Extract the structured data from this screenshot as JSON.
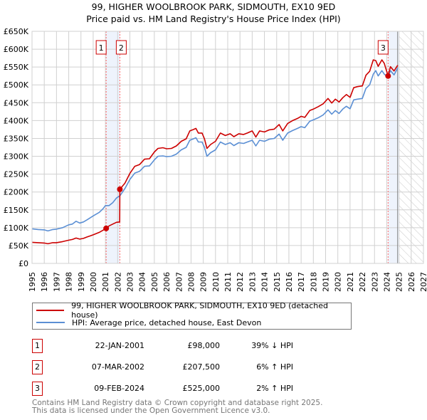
{
  "chart_data": {
    "type": "line",
    "title": "99, HIGHER WOOLBROOK PARK, SIDMOUTH, EX10 9ED",
    "subtitle": "Price paid vs. HM Land Registry's House Price Index (HPI)",
    "xlim": [
      1995,
      2027
    ],
    "ylim": [
      0,
      650000
    ],
    "x_ticks": [
      "1995",
      "1996",
      "1997",
      "1998",
      "1999",
      "2000",
      "2001",
      "2002",
      "2003",
      "2004",
      "2005",
      "2006",
      "2007",
      "2008",
      "2009",
      "2010",
      "2011",
      "2012",
      "2013",
      "2014",
      "2015",
      "2016",
      "2017",
      "2018",
      "2019",
      "2020",
      "2021",
      "2022",
      "2023",
      "2024",
      "2025",
      "2026",
      "2027"
    ],
    "y_ticks": [
      {
        "v": 0,
        "label": "£0"
      },
      {
        "v": 50000,
        "label": "£50K"
      },
      {
        "v": 100000,
        "label": "£100K"
      },
      {
        "v": 150000,
        "label": "£150K"
      },
      {
        "v": 200000,
        "label": "£200K"
      },
      {
        "v": 250000,
        "label": "£250K"
      },
      {
        "v": 300000,
        "label": "£300K"
      },
      {
        "v": 350000,
        "label": "£350K"
      },
      {
        "v": 400000,
        "label": "£400K"
      },
      {
        "v": 450000,
        "label": "£450K"
      },
      {
        "v": 500000,
        "label": "£500K"
      },
      {
        "v": 550000,
        "label": "£550K"
      },
      {
        "v": 600000,
        "label": "£600K"
      },
      {
        "v": 650000,
        "label": "£650K"
      }
    ],
    "grid": true,
    "forecast_hatch_from": 2025.0,
    "series": [
      {
        "name": "99, HIGHER WOOLBROOK PARK, SIDMOUTH, EX10 9ED (detached house)",
        "color": "#cc0000",
        "points": [
          [
            1995.0,
            59
          ],
          [
            1995.5,
            58
          ],
          [
            1996.0,
            57
          ],
          [
            1996.3,
            55
          ],
          [
            1996.7,
            58
          ],
          [
            1997.0,
            58
          ],
          [
            1997.5,
            61
          ],
          [
            1998.0,
            65
          ],
          [
            1998.3,
            67
          ],
          [
            1998.6,
            71
          ],
          [
            1998.9,
            68
          ],
          [
            1999.2,
            70
          ],
          [
            1999.5,
            74
          ],
          [
            2000.0,
            80
          ],
          [
            2000.5,
            87
          ],
          [
            2000.8,
            93
          ],
          [
            2001.06,
            98
          ],
          [
            2001.3,
            105
          ],
          [
            2001.6,
            110
          ],
          [
            2001.9,
            115
          ],
          [
            2002.17,
            116
          ],
          [
            2002.18,
            207.5
          ],
          [
            2002.6,
            225
          ],
          [
            2003.0,
            252
          ],
          [
            2003.4,
            272
          ],
          [
            2003.8,
            277
          ],
          [
            2004.2,
            292
          ],
          [
            2004.6,
            293
          ],
          [
            2005.0,
            312
          ],
          [
            2005.3,
            322
          ],
          [
            2005.7,
            324
          ],
          [
            2006.0,
            321
          ],
          [
            2006.4,
            322
          ],
          [
            2006.8,
            329
          ],
          [
            2007.2,
            342
          ],
          [
            2007.6,
            349
          ],
          [
            2007.9,
            371
          ],
          [
            2008.2,
            375
          ],
          [
            2008.4,
            378
          ],
          [
            2008.6,
            365
          ],
          [
            2008.9,
            365
          ],
          [
            2009.1,
            349
          ],
          [
            2009.3,
            322
          ],
          [
            2009.6,
            333
          ],
          [
            2010.0,
            342
          ],
          [
            2010.4,
            365
          ],
          [
            2010.8,
            358
          ],
          [
            2011.2,
            363
          ],
          [
            2011.5,
            355
          ],
          [
            2011.9,
            363
          ],
          [
            2012.3,
            361
          ],
          [
            2012.6,
            365
          ],
          [
            2013.0,
            371
          ],
          [
            2013.3,
            354
          ],
          [
            2013.6,
            371
          ],
          [
            2014.0,
            368
          ],
          [
            2014.4,
            374
          ],
          [
            2014.8,
            376
          ],
          [
            2015.2,
            389
          ],
          [
            2015.5,
            371
          ],
          [
            2015.9,
            392
          ],
          [
            2016.3,
            400
          ],
          [
            2016.7,
            406
          ],
          [
            2017.0,
            412
          ],
          [
            2017.3,
            409
          ],
          [
            2017.7,
            428
          ],
          [
            2018.0,
            432
          ],
          [
            2018.4,
            439
          ],
          [
            2018.8,
            447
          ],
          [
            2019.2,
            462
          ],
          [
            2019.5,
            449
          ],
          [
            2019.8,
            460
          ],
          [
            2020.1,
            452
          ],
          [
            2020.4,
            464
          ],
          [
            2020.7,
            473
          ],
          [
            2021.0,
            465
          ],
          [
            2021.3,
            492
          ],
          [
            2021.6,
            495
          ],
          [
            2022.0,
            497
          ],
          [
            2022.3,
            527
          ],
          [
            2022.6,
            538
          ],
          [
            2022.9,
            570
          ],
          [
            2023.1,
            568
          ],
          [
            2023.3,
            552
          ],
          [
            2023.6,
            570
          ],
          [
            2023.8,
            560
          ],
          [
            2024.11,
            525
          ],
          [
            2024.3,
            551
          ],
          [
            2024.6,
            539
          ],
          [
            2024.9,
            555
          ]
        ]
      },
      {
        "name": "HPI: Average price, detached house, East Devon",
        "color": "#5b8fd4",
        "points": [
          [
            1995.0,
            97
          ],
          [
            1995.5,
            95
          ],
          [
            1996.0,
            94
          ],
          [
            1996.3,
            91
          ],
          [
            1996.7,
            95
          ],
          [
            1997.0,
            96
          ],
          [
            1997.5,
            100
          ],
          [
            1998.0,
            108
          ],
          [
            1998.3,
            110
          ],
          [
            1998.6,
            118
          ],
          [
            1998.9,
            113
          ],
          [
            1999.2,
            116
          ],
          [
            1999.5,
            122
          ],
          [
            2000.0,
            133
          ],
          [
            2000.5,
            143
          ],
          [
            2000.8,
            153
          ],
          [
            2001.0,
            162
          ],
          [
            2001.3,
            162
          ],
          [
            2001.6,
            170
          ],
          [
            2001.9,
            183
          ],
          [
            2002.2,
            190
          ],
          [
            2002.6,
            210
          ],
          [
            2003.0,
            235
          ],
          [
            2003.4,
            253
          ],
          [
            2003.8,
            258
          ],
          [
            2004.2,
            272
          ],
          [
            2004.6,
            273
          ],
          [
            2005.0,
            290
          ],
          [
            2005.3,
            300
          ],
          [
            2005.7,
            301
          ],
          [
            2006.0,
            299
          ],
          [
            2006.4,
            300
          ],
          [
            2006.8,
            306
          ],
          [
            2007.2,
            318
          ],
          [
            2007.6,
            325
          ],
          [
            2007.9,
            345
          ],
          [
            2008.2,
            349
          ],
          [
            2008.4,
            352
          ],
          [
            2008.6,
            340
          ],
          [
            2008.9,
            340
          ],
          [
            2009.1,
            325
          ],
          [
            2009.3,
            300
          ],
          [
            2009.6,
            310
          ],
          [
            2010.0,
            318
          ],
          [
            2010.4,
            340
          ],
          [
            2010.8,
            333
          ],
          [
            2011.2,
            338
          ],
          [
            2011.5,
            330
          ],
          [
            2011.9,
            338
          ],
          [
            2012.3,
            336
          ],
          [
            2012.6,
            340
          ],
          [
            2013.0,
            345
          ],
          [
            2013.3,
            329
          ],
          [
            2013.6,
            345
          ],
          [
            2014.0,
            342
          ],
          [
            2014.4,
            348
          ],
          [
            2014.8,
            350
          ],
          [
            2015.2,
            362
          ],
          [
            2015.5,
            345
          ],
          [
            2015.9,
            365
          ],
          [
            2016.3,
            372
          ],
          [
            2016.7,
            378
          ],
          [
            2017.0,
            383
          ],
          [
            2017.3,
            380
          ],
          [
            2017.7,
            398
          ],
          [
            2018.0,
            402
          ],
          [
            2018.4,
            408
          ],
          [
            2018.8,
            416
          ],
          [
            2019.2,
            430
          ],
          [
            2019.5,
            418
          ],
          [
            2019.8,
            428
          ],
          [
            2020.1,
            420
          ],
          [
            2020.4,
            432
          ],
          [
            2020.7,
            440
          ],
          [
            2021.0,
            433
          ],
          [
            2021.3,
            458
          ],
          [
            2021.6,
            460
          ],
          [
            2022.0,
            462
          ],
          [
            2022.3,
            490
          ],
          [
            2022.6,
            500
          ],
          [
            2022.9,
            530
          ],
          [
            2023.1,
            540
          ],
          [
            2023.3,
            525
          ],
          [
            2023.6,
            540
          ],
          [
            2023.8,
            530
          ],
          [
            2024.1,
            522
          ],
          [
            2024.3,
            540
          ],
          [
            2024.6,
            528
          ],
          [
            2024.9,
            548
          ]
        ]
      }
    ],
    "value_unit": "thousands GBP",
    "sales": [
      {
        "num": "1",
        "x": 2001.06,
        "value": 98,
        "date": "22-JAN-2001",
        "price": "£98,000",
        "hpi": "39% ↓ HPI"
      },
      {
        "num": "2",
        "x": 2002.18,
        "value": 207.5,
        "date": "07-MAR-2002",
        "price": "£207,500",
        "hpi": "6% ↑ HPI"
      },
      {
        "num": "3",
        "x": 2024.11,
        "value": 525,
        "date": "09-FEB-2024",
        "price": "£525,000",
        "hpi": "2% ↑ HPI"
      }
    ]
  },
  "legend": {
    "property": "99, HIGHER WOOLBROOK PARK, SIDMOUTH, EX10 9ED (detached house)",
    "hpi": "HPI: Average price, detached house, East Devon"
  },
  "footer": {
    "line1": "Contains HM Land Registry data © Crown copyright and database right 2025.",
    "line2": "This data is licensed under the Open Government Licence v3.0."
  }
}
